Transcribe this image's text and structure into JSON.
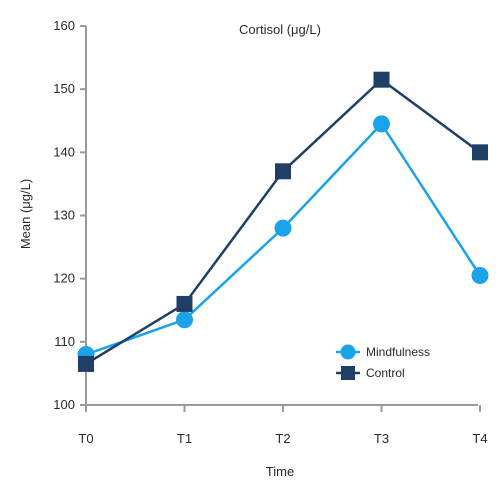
{
  "chart_data": {
    "type": "line",
    "title": "Cortisol (μg/L)",
    "xlabel": "Time",
    "ylabel": "Mean (μg/L)",
    "categories": [
      "T0",
      "T1",
      "T2",
      "T3",
      "T4"
    ],
    "ylim": [
      100,
      160
    ],
    "yticks": [
      "100",
      "110",
      "120",
      "130",
      "140",
      "150",
      "160"
    ],
    "grid": false,
    "legend_position": "bottom-right",
    "series": [
      {
        "name": "Mindfulness",
        "marker": "circle",
        "color": "#1aa3e8",
        "values": [
          108,
          113.5,
          128,
          144.5,
          120.5
        ]
      },
      {
        "name": "Control",
        "marker": "square",
        "color": "#1f3f66",
        "values": [
          106.5,
          116,
          137,
          151.5,
          140
        ]
      }
    ]
  }
}
